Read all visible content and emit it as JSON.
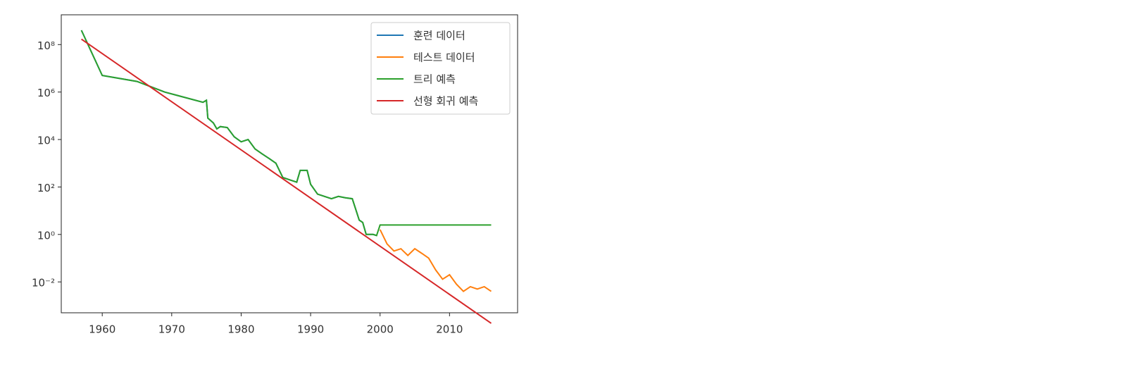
{
  "chart_data": {
    "type": "line",
    "xlim": [
      1954.1,
      2019.8
    ],
    "xticks": [
      1960,
      1970,
      1980,
      1990,
      2000,
      2010
    ],
    "ylim": [
      0.0005,
      1800000000.0
    ],
    "yscale": "log",
    "yticks": [
      {
        "value": 0.01,
        "label": "10⁻²"
      },
      {
        "value": 1,
        "label": "10⁰"
      },
      {
        "value": 100,
        "label": "10²"
      },
      {
        "value": 10000,
        "label": "10⁴"
      },
      {
        "value": 1000000,
        "label": "10⁶"
      },
      {
        "value": 100000000,
        "label": "10⁸"
      }
    ],
    "legend": "upper right",
    "series": [
      {
        "name": "훈련 데이터",
        "color": "#1f77b4",
        "x": [
          1957,
          1960,
          1965,
          1969,
          1974.5,
          1975,
          1975.2,
          1976,
          1976.5,
          1977,
          1978,
          1979,
          1980,
          1981,
          1982,
          1983,
          1984,
          1985,
          1986,
          1987,
          1988,
          1988.5,
          1989.5,
          1990,
          1991,
          1992,
          1993,
          1994,
          1995,
          1996,
          1997,
          1997.5,
          1998,
          1999,
          1999.5
        ],
        "values": [
          400000000.0,
          5000000.0,
          2800000.0,
          1000000.0,
          370000.0,
          450000.0,
          80000.0,
          50000.0,
          28000.0,
          35000.0,
          32000.0,
          13000.0,
          8000,
          10000,
          4000,
          2500,
          1600,
          1000,
          250,
          200,
          160,
          500,
          500,
          130,
          50,
          40,
          32,
          40,
          35,
          32,
          4,
          3.2,
          1,
          1,
          0.9
        ]
      },
      {
        "name": "테스트 데이터",
        "color": "#ff7f0e",
        "x": [
          2000,
          2001,
          2002,
          2003,
          2004,
          2005,
          2006,
          2007,
          2008,
          2009,
          2010,
          2011,
          2012,
          2013,
          2014,
          2015,
          2016
        ],
        "values": [
          1.6,
          0.4,
          0.2,
          0.25,
          0.13,
          0.25,
          0.16,
          0.1,
          0.032,
          0.013,
          0.02,
          0.008,
          0.004,
          0.0063,
          0.005,
          0.0063,
          0.004
        ]
      },
      {
        "name": "트리 예측",
        "color": "#2ca02c",
        "x": [
          1957,
          1960,
          1965,
          1969,
          1974.5,
          1975,
          1975.2,
          1976,
          1976.5,
          1977,
          1978,
          1979,
          1980,
          1981,
          1982,
          1983,
          1984,
          1985,
          1986,
          1987,
          1988,
          1988.5,
          1989.5,
          1990,
          1991,
          1992,
          1993,
          1994,
          1995,
          1996,
          1997,
          1997.5,
          1998,
          1999,
          1999.5,
          2000,
          2016
        ],
        "values": [
          400000000.0,
          5000000.0,
          2800000.0,
          1000000.0,
          370000.0,
          450000.0,
          80000.0,
          50000.0,
          28000.0,
          35000.0,
          32000.0,
          13000.0,
          8000,
          10000,
          4000,
          2500,
          1600,
          1000,
          250,
          200,
          160,
          500,
          500,
          130,
          50,
          40,
          32,
          40,
          35,
          32,
          4,
          3.2,
          1,
          1,
          0.9,
          2.5,
          2.5
        ]
      },
      {
        "name": "선형 회귀 예측",
        "color": "#d62728",
        "x": [
          1957,
          2016
        ],
        "values": [
          170000000.0,
          0.00018
        ]
      }
    ]
  }
}
